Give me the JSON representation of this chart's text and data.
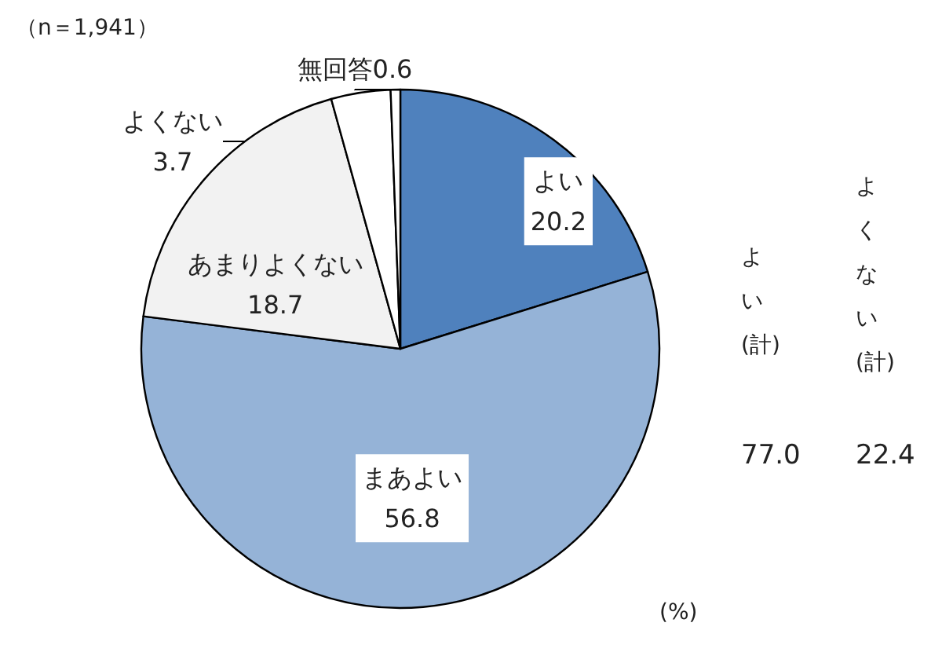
{
  "chart_data": {
    "type": "pie",
    "categories": [
      "よい",
      "まあよい",
      "あまりよくない",
      "よくない",
      "無回答"
    ],
    "values": [
      20.2,
      56.8,
      18.7,
      3.7,
      0.6
    ],
    "colors": [
      "#4f81bd",
      "#95b3d7",
      "#f2f2f2",
      "#ffffff",
      "#ffffff"
    ],
    "data_labels": true,
    "legend": false,
    "annotations": [
      "（n＝1,941）",
      "よい(計)",
      "77.0",
      "よくない(計)",
      "22.4",
      "(%)"
    ]
  }
}
